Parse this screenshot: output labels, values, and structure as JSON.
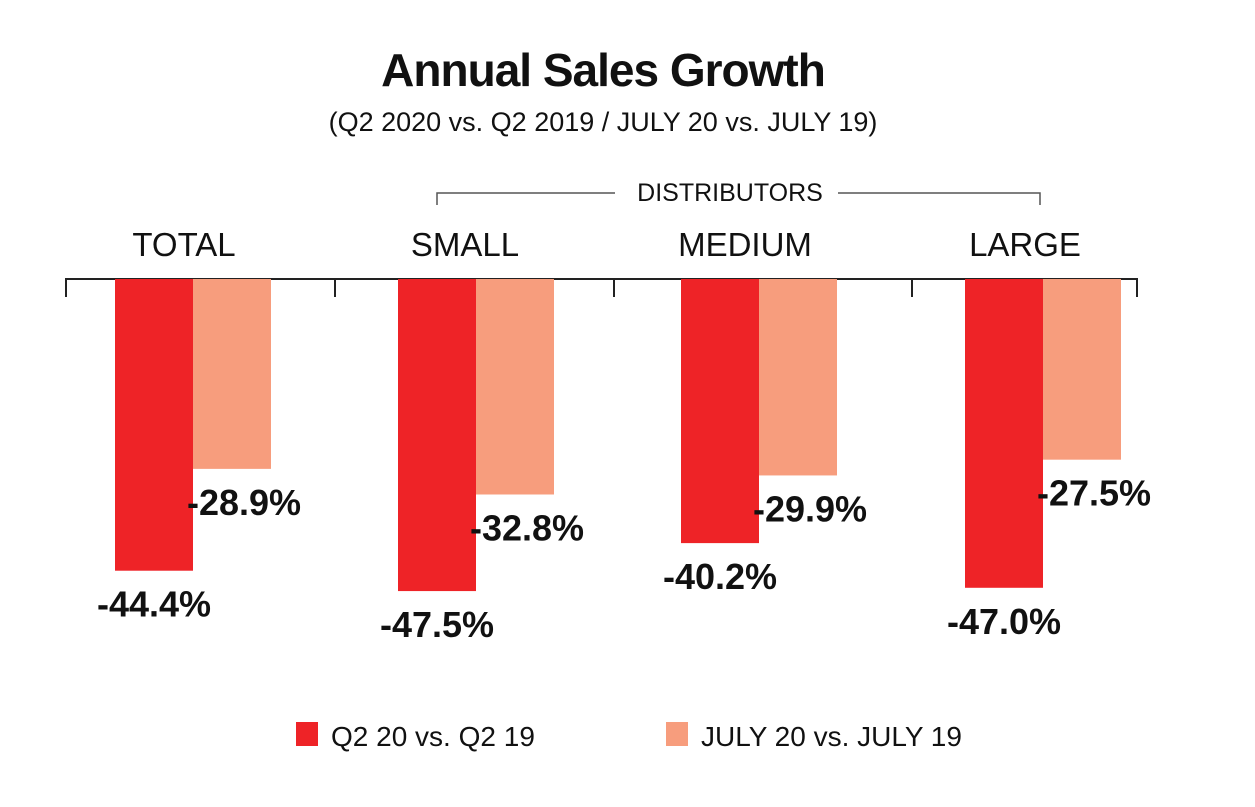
{
  "chart_data": {
    "type": "bar",
    "title": "Annual Sales Growth",
    "subtitle": "(Q2 2020 vs. Q2 2019 / JULY 20 vs. JULY 19)",
    "group_label": "DISTRIBUTORS",
    "categories": [
      "TOTAL",
      "SMALL",
      "MEDIUM",
      "LARGE"
    ],
    "series": [
      {
        "name": "Q2 20 vs. Q2 19",
        "color": "#ee2327",
        "values": [
          -44.4,
          -47.5,
          -40.2,
          -47.0
        ],
        "labels": [
          "-44.4%",
          "-47.5%",
          "-40.2%",
          "-47.0%"
        ]
      },
      {
        "name": "JULY 20 vs. JULY 19",
        "color": "#f79d7d",
        "values": [
          -28.9,
          -32.8,
          -29.9,
          -27.5
        ],
        "labels": [
          "-28.9%",
          "-32.8%",
          "-29.9%",
          "-27.5%"
        ]
      }
    ],
    "ylim": [
      -50,
      0
    ],
    "grid": false,
    "legend_position": "bottom"
  }
}
